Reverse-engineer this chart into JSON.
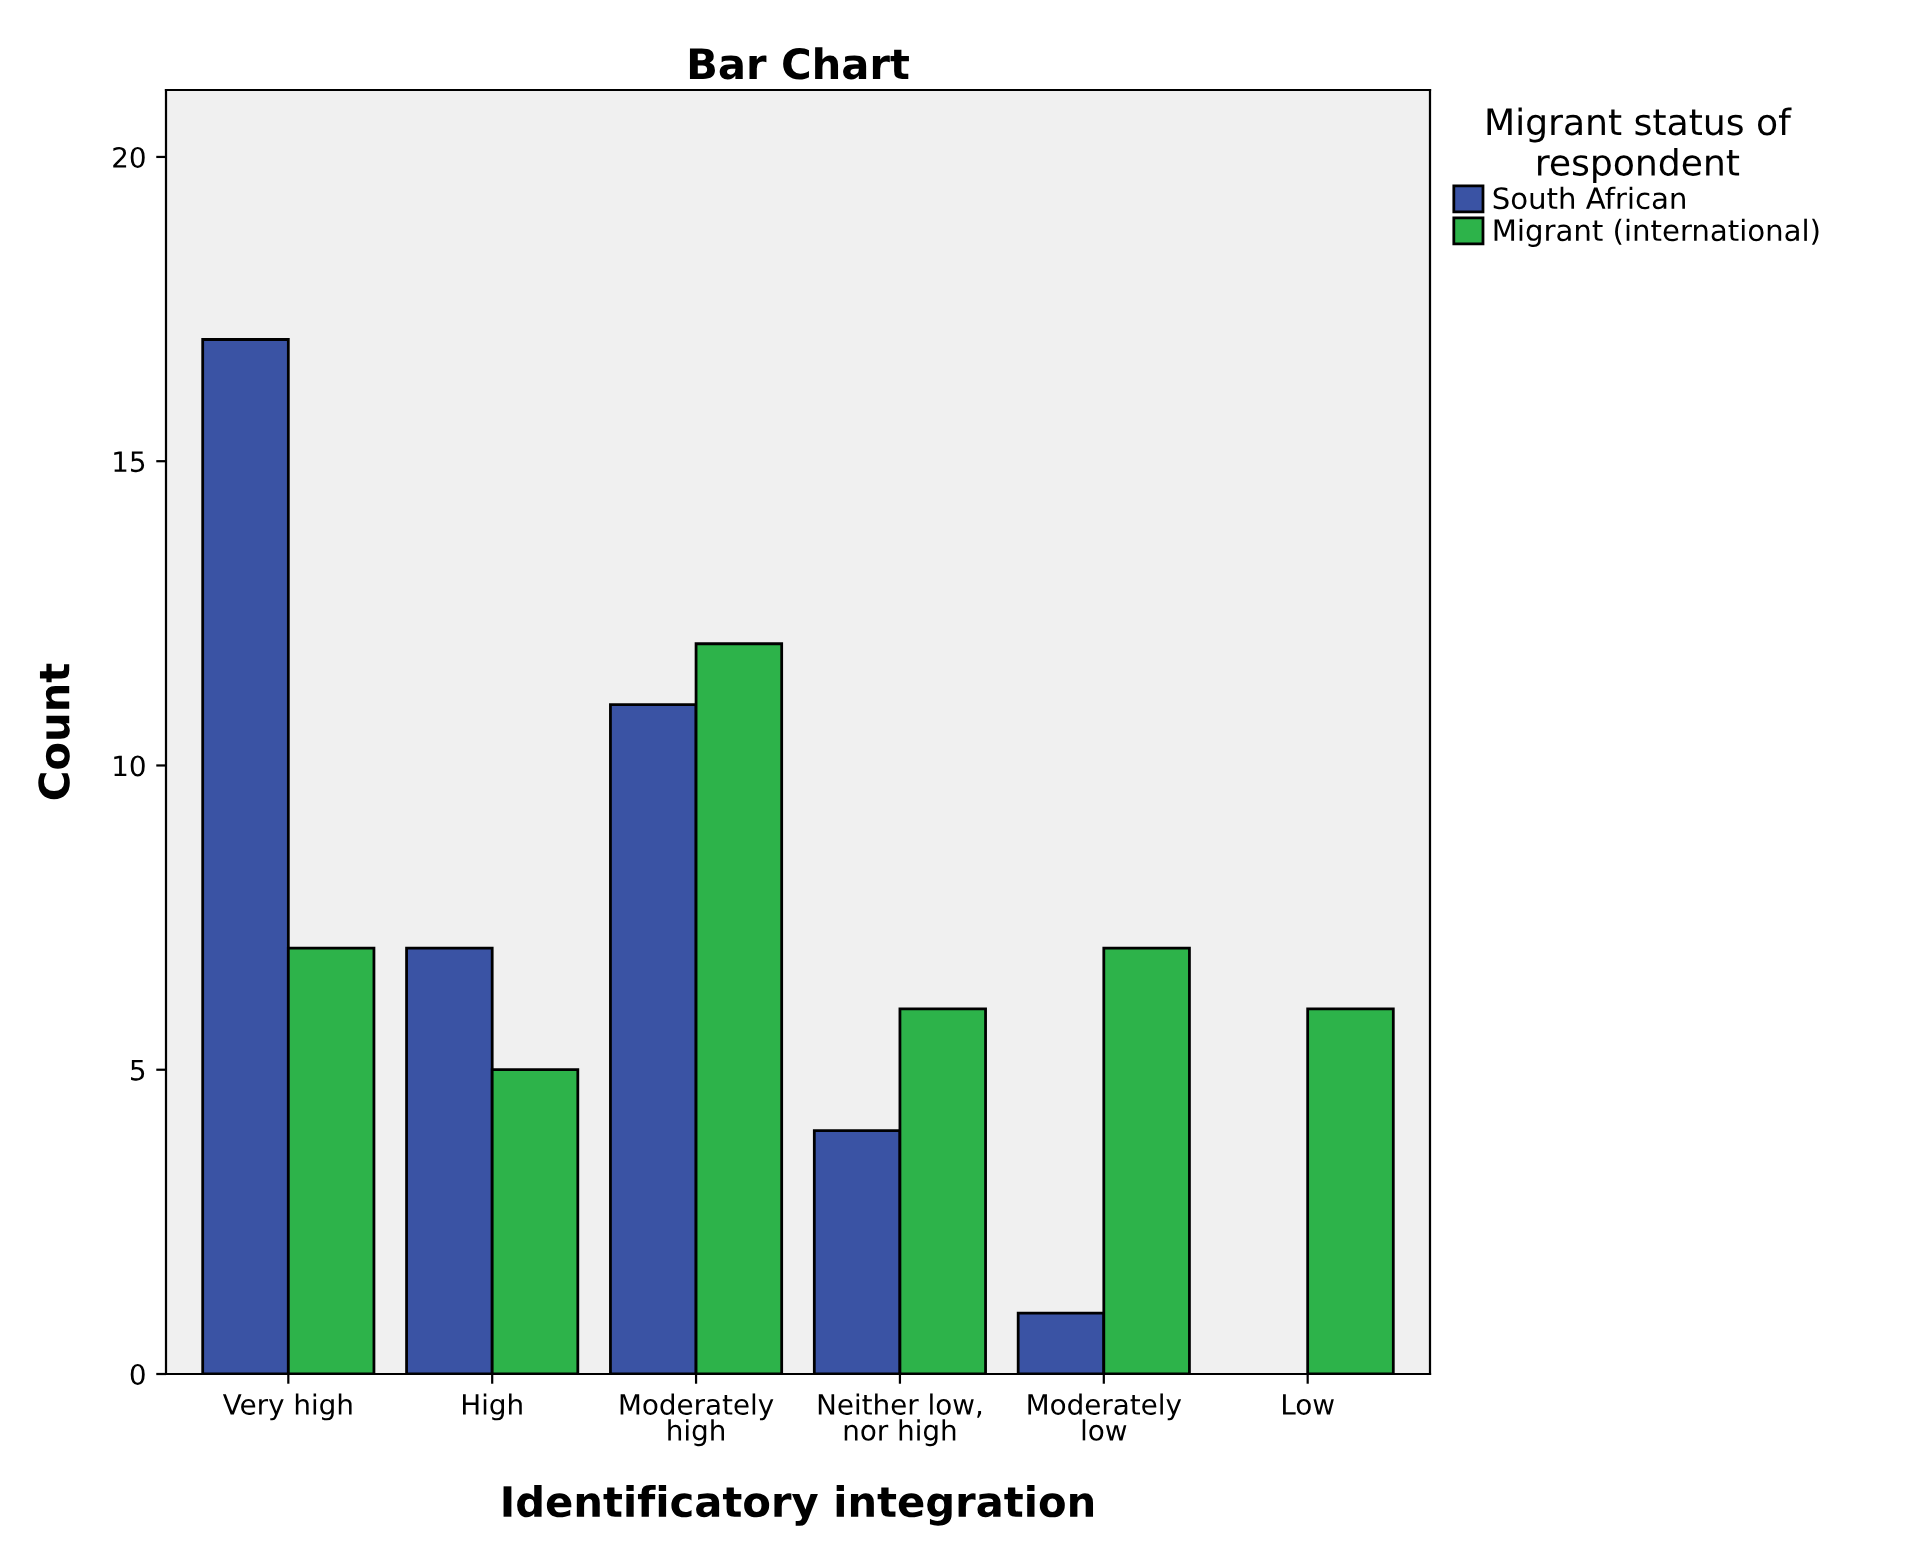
{
  "chart_data": {
    "type": "bar",
    "title": "Bar Chart",
    "xlabel": "Identificatory integration",
    "ylabel": "Count",
    "categories": [
      "Very high",
      "High",
      "Moderately\nhigh",
      "Neither low,\nnor high",
      "Moderately\nlow",
      "Low"
    ],
    "series": [
      {
        "name": "South African",
        "color": "#3a53a4",
        "values": [
          17,
          7,
          11,
          4,
          1,
          null
        ]
      },
      {
        "name": "Migrant (international)",
        "color": "#2db34a",
        "values": [
          7,
          5,
          12,
          6,
          7,
          6
        ]
      }
    ],
    "legend_title": "Migrant status of\nrespondent",
    "legend": "right",
    "ylim": [
      0,
      21.1
    ],
    "yticks": [
      0,
      5,
      10,
      15,
      20
    ],
    "grid": false
  }
}
